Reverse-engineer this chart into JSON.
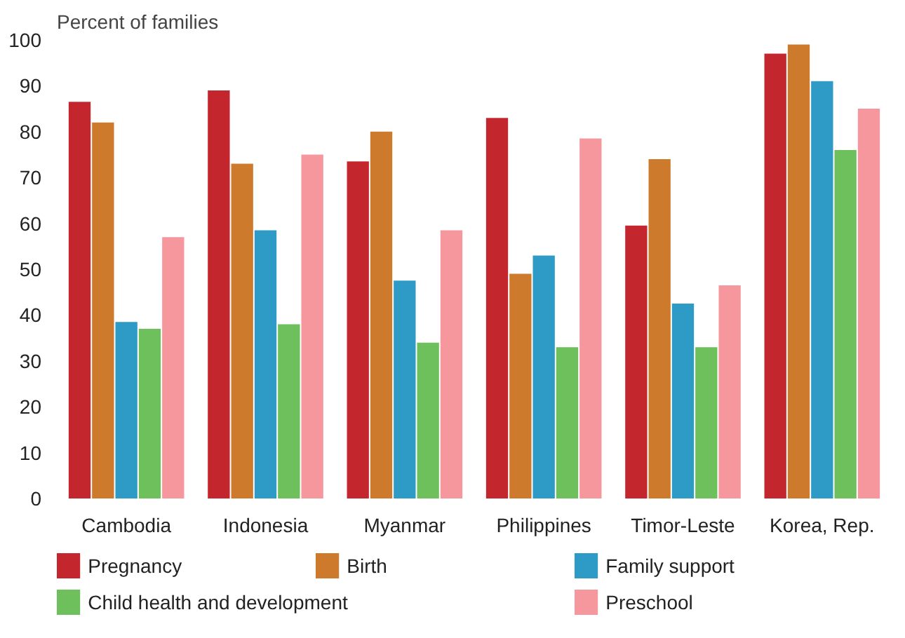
{
  "chart_data": {
    "type": "bar",
    "ylabel": "Percent of families",
    "categories": [
      "Cambodia",
      "Indonesia",
      "Myanmar",
      "Philippines",
      "Timor-Leste",
      "Korea, Rep."
    ],
    "series": [
      {
        "name": "Pregnancy",
        "color": "#c4262e",
        "values": [
          86.5,
          89,
          73.5,
          83,
          59.5,
          97
        ]
      },
      {
        "name": "Birth",
        "color": "#cd7a2c",
        "values": [
          82,
          73,
          80,
          49,
          74,
          99
        ]
      },
      {
        "name": "Family support",
        "color": "#2e9ac6",
        "values": [
          38.5,
          58.5,
          47.5,
          53,
          42.5,
          91
        ]
      },
      {
        "name": "Child health and development",
        "color": "#6dc05b",
        "values": [
          37,
          38,
          34,
          33,
          33,
          76
        ]
      },
      {
        "name": "Preschool",
        "color": "#f5979d",
        "values": [
          57,
          75,
          58.5,
          78.5,
          46.5,
          85
        ]
      }
    ],
    "ylim": [
      0,
      100
    ],
    "yticks": [
      0,
      10,
      20,
      30,
      40,
      50,
      60,
      70,
      80,
      90,
      100
    ],
    "grid": false,
    "legend": "bottom"
  }
}
